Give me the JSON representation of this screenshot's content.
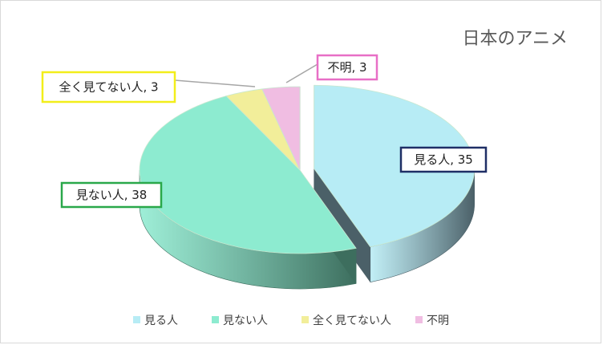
{
  "chart_data": {
    "type": "pie",
    "title": "日本のアニメ",
    "categories": [
      "見る人",
      "見ない人",
      "全く見てない人",
      "不明"
    ],
    "values": [
      35,
      38,
      3,
      3
    ],
    "data_labels": [
      "見る人, 35",
      "見ない人, 38",
      "全く見てない人, 3",
      "不明, 3"
    ],
    "legend_position": "bottom",
    "colors": {
      "top": [
        "#b7ecf5",
        "#8debd0",
        "#f2ee9a",
        "#f0bde2"
      ],
      "side": [
        "#4b6068",
        "#3d6e5e",
        "#7a7230",
        "#7a4d6b"
      ],
      "label_border": [
        "#1f2f66",
        "#2aa84a",
        "#f2ee1a",
        "#e86fc6"
      ]
    }
  }
}
